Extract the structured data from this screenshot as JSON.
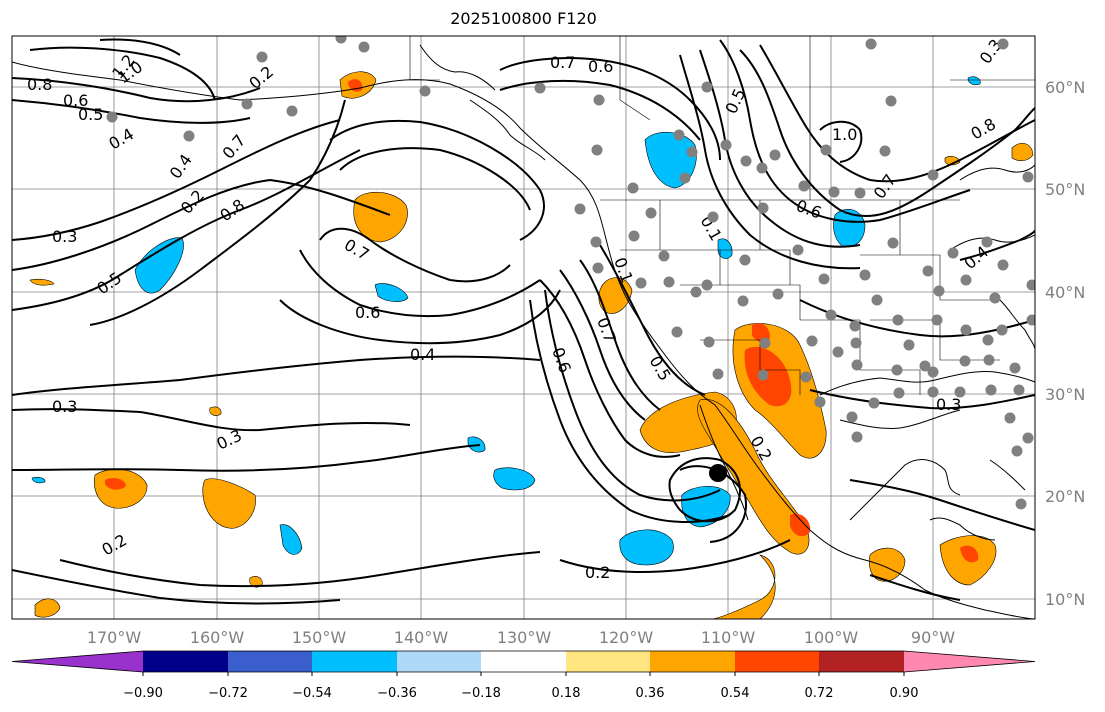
{
  "title": "2025100800 F120",
  "lat_labels": [
    "60°N",
    "50°N",
    "40°N",
    "30°N",
    "20°N",
    "10°N"
  ],
  "lon_labels": [
    "170°W",
    "160°W",
    "150°W",
    "140°W",
    "130°W",
    "120°W",
    "110°W",
    "100°W",
    "90°W"
  ],
  "colorbar": {
    "tick_labels": [
      "−0.90",
      "−0.72",
      "−0.54",
      "−0.36",
      "−0.18",
      "0.18",
      "0.36",
      "0.54",
      "0.72",
      "0.90"
    ],
    "colors": [
      "#9932CC",
      "#00008B",
      "#3A5FCD",
      "#00BFFF",
      "#ADD8F6",
      "#FFFFFF",
      "#FFE680",
      "#FFA500",
      "#FF4500",
      "#B22222",
      "#FF88B0"
    ]
  },
  "contour_labels": [
    "1.2",
    "1.0",
    "0.8",
    "0.6",
    "0.5",
    "0.4",
    "0.3",
    "0.3",
    "0.2",
    "0.7",
    "0.8",
    "0.4",
    "0.5",
    "0.7",
    "0.6",
    "0.4",
    "0.3",
    "0.3",
    "0.2",
    "0.2",
    "0.7",
    "0.6",
    "0.5",
    "1.0",
    "0.8",
    "0.7",
    "0.6",
    "0.4",
    "0.3",
    "0.6",
    "0.7",
    "0.5",
    "0.2",
    "0.1",
    "0.1",
    "0.2"
  ],
  "colors": {
    "grid": "#808080",
    "contour": "#000000",
    "anomaly_positive": "#FFA500",
    "anomaly_strong_positive": "#FF4500",
    "anomaly_negative": "#00BFFF",
    "station_marker": "#808080"
  }
}
